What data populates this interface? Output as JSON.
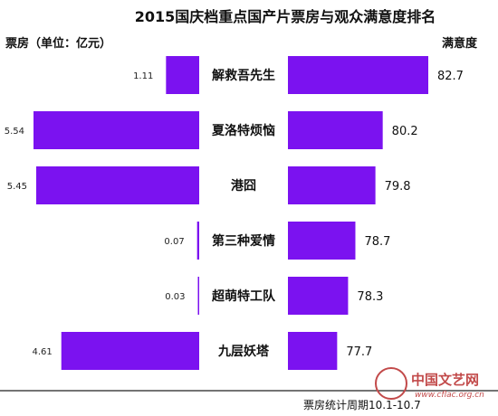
{
  "chart_data": {
    "type": "bar",
    "title": "2015国庆档重点国产片票房与观众满意度排名",
    "left_axis_label": "票房（单位：亿元）",
    "right_axis_label": "满意度",
    "categories": [
      "解救吾先生",
      "夏洛特烦恼",
      "港囧",
      "第三种爱情",
      "超萌特工队",
      "九层妖塔"
    ],
    "series": [
      {
        "name": "票房",
        "values": [
          1.11,
          5.54,
          5.45,
          0.07,
          0.03,
          4.61
        ]
      },
      {
        "name": "满意度",
        "values": [
          82.7,
          80.2,
          79.8,
          78.7,
          78.3,
          77.7
        ]
      }
    ],
    "left_labels": [
      "1.11",
      "5.54",
      "5.45",
      "0.07",
      "0.03",
      "4.61"
    ],
    "right_labels": [
      "82.7",
      "80.2",
      "79.8",
      "78.7",
      "78.3",
      "77.7"
    ],
    "left_scale_max": 5.54,
    "right_scale_min": 75,
    "right_scale_max": 82.7,
    "footer": "票房统计周期10.1-10.7",
    "bar_color": "#7b12f0"
  },
  "watermark": {
    "text": "中国文艺网",
    "url": "www.cflac.org.cn",
    "color": "#c24a4a"
  }
}
